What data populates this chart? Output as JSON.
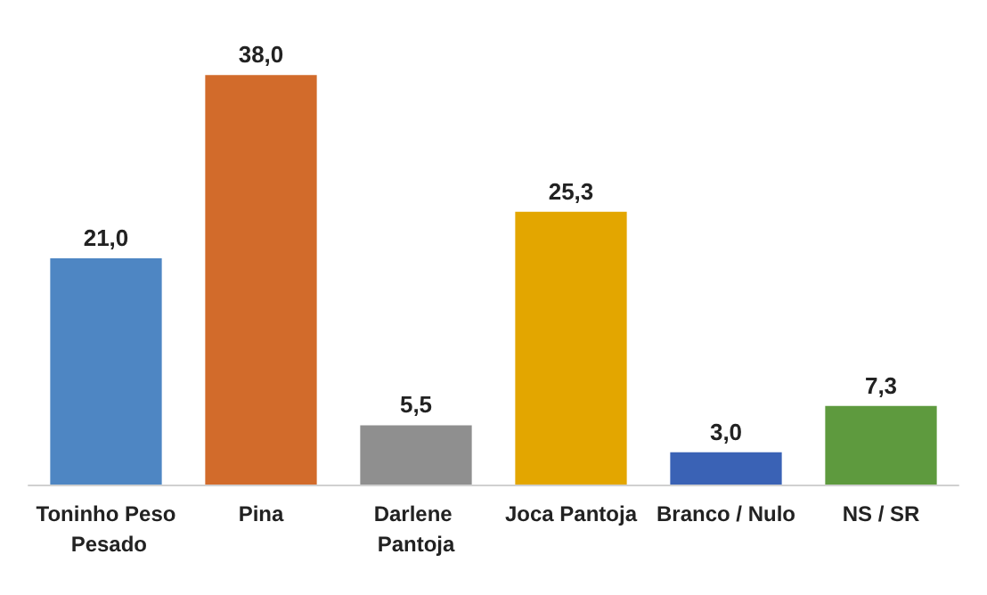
{
  "chart_data": {
    "type": "bar",
    "categories": [
      "Toninho Peso Pesado",
      "Pina",
      "Darlene Pantoja",
      "Joca Pantoja",
      "Branco / Nulo",
      "NS / SR"
    ],
    "values": [
      21.0,
      38.0,
      5.5,
      25.3,
      3.0,
      7.3
    ],
    "colors": [
      "#4e86c3",
      "#d26b2b",
      "#8f8f8f",
      "#e3a600",
      "#3a62b5",
      "#5e9a3e"
    ],
    "value_labels": [
      "21,0",
      "38,0",
      "5,5",
      "25,3",
      "3,0",
      "7,3"
    ]
  }
}
